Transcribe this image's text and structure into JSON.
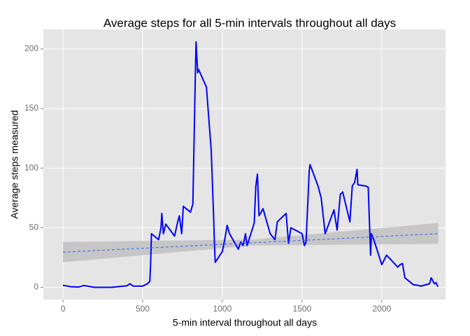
{
  "chart_data": {
    "type": "line",
    "title": "Average steps for all 5-min intervals throughout all days",
    "x_label": "5-min interval throughout all days",
    "y_label": "Average steps measured",
    "xlim": [
      -123,
      2400
    ],
    "ylim": [
      -10.3,
      216.4
    ],
    "xticks": [
      0,
      500,
      1000,
      1500,
      2000
    ],
    "yticks": [
      0,
      50,
      100,
      150,
      200
    ],
    "grid": true,
    "x": [
      0,
      50,
      100,
      130,
      200,
      300,
      400,
      420,
      440,
      500,
      530,
      545,
      550,
      555,
      600,
      615,
      620,
      630,
      645,
      700,
      720,
      730,
      745,
      755,
      800,
      815,
      830,
      835,
      845,
      850,
      900,
      930,
      945,
      950,
      955,
      1000,
      1015,
      1030,
      1045,
      1100,
      1115,
      1130,
      1145,
      1155,
      1200,
      1210,
      1220,
      1230,
      1255,
      1300,
      1330,
      1345,
      1400,
      1415,
      1430,
      1500,
      1515,
      1525,
      1545,
      1550,
      1600,
      1620,
      1645,
      1700,
      1720,
      1740,
      1755,
      1800,
      1815,
      1830,
      1845,
      1850,
      1900,
      1915,
      1930,
      1935,
      1950,
      2000,
      2030,
      2100,
      2115,
      2130,
      2145,
      2200,
      2215,
      2245,
      2300,
      2310,
      2330,
      2340,
      2350,
      2355
    ],
    "series": [
      {
        "color": "#0000ff",
        "values": [
          1.7,
          0.5,
          0.3,
          1.5,
          0,
          0,
          1.2,
          3,
          1,
          1,
          3,
          5,
          20,
          45,
          40,
          50,
          62,
          45,
          53,
          43,
          55,
          60,
          45,
          68,
          63,
          70,
          175,
          206,
          180,
          183,
          168,
          115,
          60,
          38,
          21,
          30,
          40,
          52,
          45,
          32,
          38,
          35,
          45,
          35,
          54,
          85,
          95,
          60,
          66,
          45,
          40,
          55,
          62,
          37,
          50,
          45,
          35,
          38,
          98,
          103,
          85,
          75,
          45,
          65,
          48,
          78,
          80,
          55,
          85,
          88,
          99,
          86,
          85,
          84,
          27,
          45,
          40,
          19,
          27,
          17,
          19,
          20,
          8,
          2,
          2,
          1,
          3,
          8,
          3,
          4,
          1,
          1
        ]
      }
    ],
    "trend": {
      "color": "#3366ff",
      "x": [
        0,
        2355
      ],
      "values": [
        29.5,
        45
      ]
    },
    "band": {
      "color": "#c2c2c2",
      "x": [
        0,
        1178,
        2355
      ],
      "lower": [
        21,
        35,
        36.5
      ],
      "upper": [
        38,
        40,
        54
      ]
    }
  }
}
